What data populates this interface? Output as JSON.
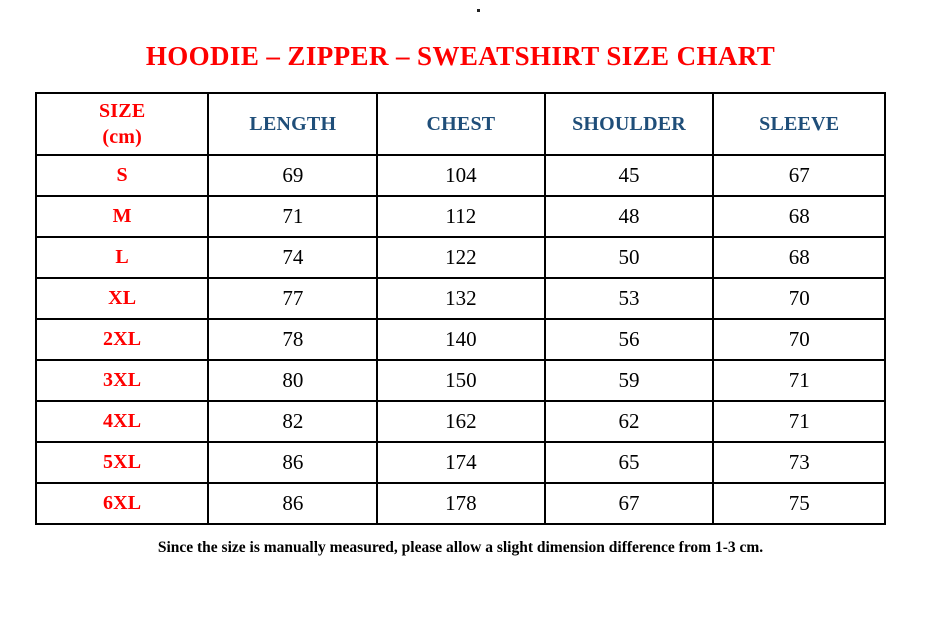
{
  "page": {
    "background": "#FFFFFF",
    "stray_mark": ".",
    "title": "HOODIE – ZIPPER – SWEATSHIRT SIZE CHART",
    "footnote": "Since the size is manually measured, please allow a slight dimension difference from 1-3 cm."
  },
  "colors": {
    "title": "#FE0000",
    "size_labels": "#FE0000",
    "column_headers": "#1F4E79",
    "values": "#000000",
    "border": "#000000"
  },
  "chart_data": {
    "type": "table",
    "title": "HOODIE – ZIPPER – SWEATSHIRT SIZE CHART",
    "units": "cm",
    "columns": [
      "SIZE (cm)",
      "LENGTH",
      "CHEST",
      "SHOULDER",
      "SLEEVE"
    ],
    "header_lines": {
      "size": [
        "SIZE",
        "(cm)"
      ]
    },
    "rows": [
      [
        "S",
        "69",
        "104",
        "45",
        "67"
      ],
      [
        "M",
        "71",
        "112",
        "48",
        "68"
      ],
      [
        "L",
        "74",
        "122",
        "50",
        "68"
      ],
      [
        "XL",
        "77",
        "132",
        "53",
        "70"
      ],
      [
        "2XL",
        "78",
        "140",
        "56",
        "70"
      ],
      [
        "3XL",
        "80",
        "150",
        "59",
        "71"
      ],
      [
        "4XL",
        "82",
        "162",
        "62",
        "71"
      ],
      [
        "5XL",
        "86",
        "174",
        "65",
        "73"
      ],
      [
        "6XL",
        "86",
        "178",
        "67",
        "75"
      ]
    ],
    "note": "Since the size is manually measured, please allow a slight dimension difference from 1-3 cm."
  }
}
